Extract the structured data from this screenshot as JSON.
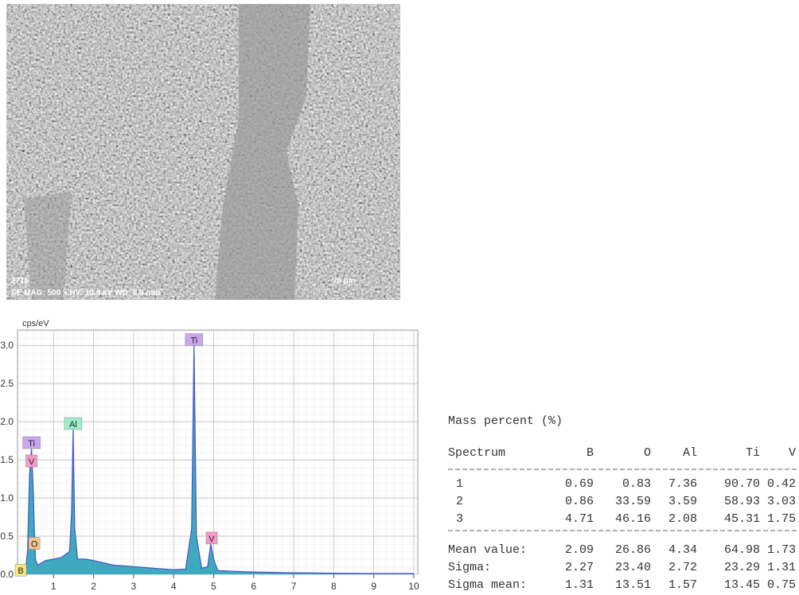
{
  "image": {
    "sample_id": "2716",
    "info": "SE  MAG: 500 x  HV: 10.0 kV  WD: 8.9 mm",
    "scale_bar": "70 µm"
  },
  "chart_data": {
    "type": "area",
    "y_label": "cps/eV",
    "color": "#2aa0b8",
    "line_color": "#4a52c8",
    "xlim": [
      0.1,
      10.1
    ],
    "xticks": [
      1,
      2,
      3,
      4,
      5,
      6,
      7,
      8,
      9,
      10
    ],
    "ylim": [
      0,
      3.2
    ],
    "yticks": [
      {
        "value": 0,
        "label": "0.0"
      },
      {
        "value": 0.5,
        "label": "0.5"
      },
      {
        "value": 1,
        "label": "1.0"
      },
      {
        "value": 1.5,
        "label": "1.5"
      },
      {
        "value": 2,
        "label": "2.0"
      },
      {
        "value": 2.5,
        "label": "2.5"
      },
      {
        "value": 3,
        "label": "3.0"
      }
    ],
    "grid": true,
    "x": [
      0.1,
      0.2,
      0.3,
      0.35,
      0.4,
      0.45,
      0.5,
      0.52,
      0.55,
      0.6,
      0.7,
      0.8,
      1.0,
      1.2,
      1.4,
      1.45,
      1.49,
      1.53,
      1.6,
      1.8,
      2.0,
      2.5,
      3.0,
      3.5,
      4.0,
      4.3,
      4.45,
      4.51,
      4.57,
      4.7,
      4.85,
      4.93,
      5.0,
      5.1,
      5.5,
      6.0,
      7.0,
      8.0,
      9.0,
      10.0
    ],
    "values": [
      0.02,
      0.08,
      0.05,
      0.3,
      1.3,
      1.65,
      1.0,
      0.6,
      0.2,
      0.12,
      0.15,
      0.18,
      0.2,
      0.22,
      0.3,
      0.8,
      1.9,
      0.6,
      0.2,
      0.2,
      0.18,
      0.12,
      0.1,
      0.08,
      0.06,
      0.07,
      0.6,
      3.0,
      0.5,
      0.08,
      0.1,
      0.4,
      0.2,
      0.05,
      0.04,
      0.03,
      0.02,
      0.015,
      0.01,
      0.01
    ],
    "annotations": [
      {
        "text": "B",
        "x": 0.18,
        "y": 0.05,
        "color": "#f4e97a"
      },
      {
        "text": "Ti",
        "x": 0.45,
        "y": 1.72,
        "color": "#c9a6f0"
      },
      {
        "text": "V",
        "x": 0.45,
        "y": 1.48,
        "color": "#f59ac8"
      },
      {
        "text": "O",
        "x": 0.52,
        "y": 0.4,
        "color": "#f8c58a"
      },
      {
        "text": "Al",
        "x": 1.49,
        "y": 1.97,
        "color": "#9af0c8"
      },
      {
        "text": "Ti",
        "x": 4.51,
        "y": 3.07,
        "color": "#c9a6f0"
      },
      {
        "text": "V",
        "x": 4.95,
        "y": 0.47,
        "color": "#f59ac8"
      }
    ]
  },
  "table": {
    "title": "Mass percent (%)",
    "header": [
      "Spectrum",
      "B",
      "O",
      "Al",
      "Ti",
      "V"
    ],
    "rows": [
      [
        "1",
        "0.69",
        "0.83",
        "7.36",
        "90.70",
        "0.42"
      ],
      [
        "2",
        "0.86",
        "33.59",
        "3.59",
        "58.93",
        "3.03"
      ],
      [
        "3",
        "4.71",
        "46.16",
        "2.08",
        "45.31",
        "1.75"
      ]
    ],
    "summary": [
      [
        "Mean value:",
        "2.09",
        "26.86",
        "4.34",
        "64.98",
        "1.73"
      ],
      [
        "Sigma:",
        "2.27",
        "23.40",
        "2.72",
        "23.29",
        "1.31"
      ],
      [
        "Sigma mean:",
        "1.31",
        "13.51",
        "1.57",
        "13.45",
        "0.75"
      ]
    ]
  }
}
